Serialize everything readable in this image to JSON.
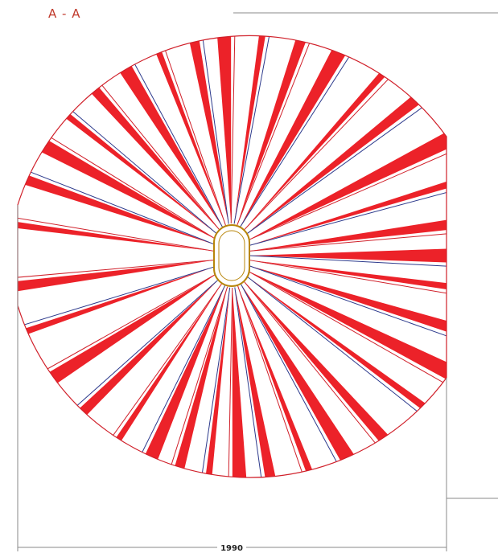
{
  "section": {
    "title": "A - A"
  },
  "dimension": {
    "width_label": "1990"
  }
}
